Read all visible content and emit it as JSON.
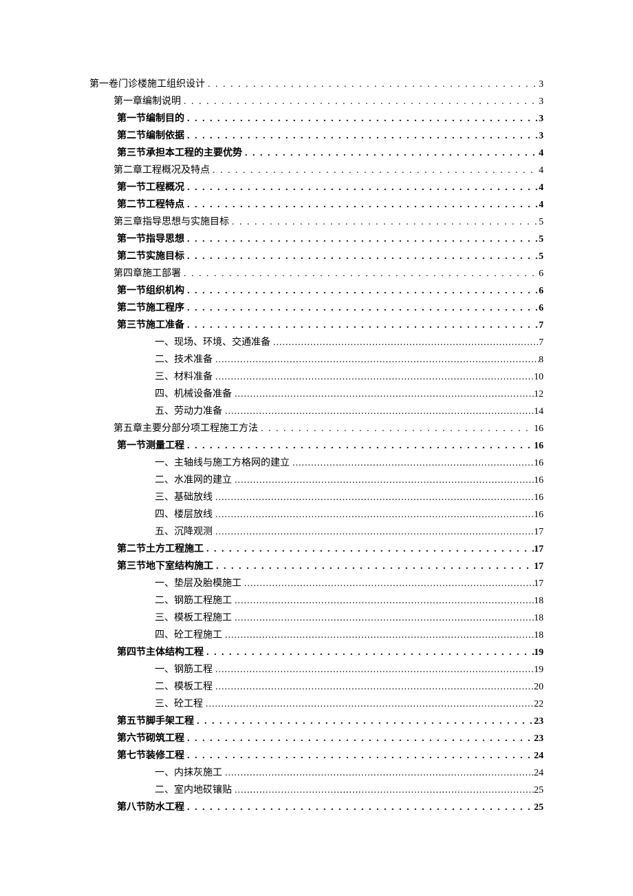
{
  "dotLeader": ". . . . . . . . . . . . . . . . . . . . . . . . . . . . . . . . . . . . . . . . . . . . . . . . . . . . . . . . . . . . . . . . . . . . . . . . . . . . . . . . . . . . . . . . . . . . . . . . . . . . . . . . . . . . . . . . . . . . . . . . . . . . . . . . . . . . . . . . . . . . . . . . . . . . . . . . . . . . . . . . . . . . . . . . . . . . . . . . . . . .",
  "halfDotLeader": "........................................................................................................................................................................................................................",
  "toc": [
    {
      "level": 0,
      "label": "第一卷门诊楼施工组织设计",
      "page": "3",
      "bold": false,
      "halfdot": false
    },
    {
      "level": 1,
      "label": "第一章编制说明",
      "page": "3",
      "bold": false,
      "halfdot": false
    },
    {
      "level": 2,
      "label": "第一节编制目的",
      "page": "3",
      "bold": true,
      "halfdot": false
    },
    {
      "level": 2,
      "label": "第二节编制依据",
      "page": "3",
      "bold": true,
      "halfdot": false
    },
    {
      "level": 2,
      "label": "第三节承担本工程的主要优势",
      "page": "4",
      "bold": true,
      "halfdot": false
    },
    {
      "level": 1,
      "label": "第二章工程概况及特点",
      "page": "4",
      "bold": false,
      "halfdot": false
    },
    {
      "level": 2,
      "label": "第一节工程概况",
      "page": "4",
      "bold": true,
      "halfdot": false
    },
    {
      "level": 2,
      "label": "第二节工程特点",
      "page": "4",
      "bold": true,
      "halfdot": false
    },
    {
      "level": 1,
      "label": "第三章指导思想与实施目标",
      "page": "5",
      "bold": false,
      "halfdot": false
    },
    {
      "level": 2,
      "label": "第一节指导思想",
      "page": "5",
      "bold": true,
      "halfdot": false
    },
    {
      "level": 2,
      "label": "第二节实施目标",
      "page": "5",
      "bold": true,
      "halfdot": false
    },
    {
      "level": 1,
      "label": "第四章施工部署",
      "page": "6",
      "bold": false,
      "halfdot": false
    },
    {
      "level": 2,
      "label": "第一节组织机构",
      "page": "6",
      "bold": true,
      "halfdot": false
    },
    {
      "level": 2,
      "label": "第二节施工程序",
      "page": "6",
      "bold": true,
      "halfdot": false
    },
    {
      "level": 2,
      "label": "第三节施工准备",
      "page": "7",
      "bold": true,
      "halfdot": false
    },
    {
      "level": 3,
      "label": "一、现场、环境、交通准备",
      "page": "7",
      "bold": false,
      "halfdot": true
    },
    {
      "level": 3,
      "label": "二、技术准备",
      "page": "8",
      "bold": false,
      "halfdot": true
    },
    {
      "level": 3,
      "label": "三、材料准备",
      "page": "10",
      "bold": false,
      "halfdot": true
    },
    {
      "level": 3,
      "label": "四、机械设备准备",
      "page": "12",
      "bold": false,
      "halfdot": true
    },
    {
      "level": 3,
      "label": "五、劳动力准备",
      "page": "14",
      "bold": false,
      "halfdot": true
    },
    {
      "level": 1,
      "label": "第五章主要分部分项工程施工方法",
      "page": "16",
      "bold": false,
      "halfdot": false
    },
    {
      "level": 2,
      "label": "第一节测量工程",
      "page": "16",
      "bold": true,
      "halfdot": false
    },
    {
      "level": 3,
      "label": "一、主轴线与施工方格网的建立",
      "page": "16",
      "bold": false,
      "halfdot": true
    },
    {
      "level": 3,
      "label": "二、水准网的建立",
      "page": "16",
      "bold": false,
      "halfdot": true
    },
    {
      "level": 3,
      "label": "三、基础放线",
      "page": "16",
      "bold": false,
      "halfdot": true
    },
    {
      "level": 3,
      "label": "四、楼层放线",
      "page": "16",
      "bold": false,
      "halfdot": true
    },
    {
      "level": 3,
      "label": "五、沉降观测",
      "page": "17",
      "bold": false,
      "halfdot": true
    },
    {
      "level": 2,
      "label": "第二节土方工程施工",
      "page": "17",
      "bold": true,
      "halfdot": false
    },
    {
      "level": 2,
      "label": "第三节地下室结构施工",
      "page": "17",
      "bold": true,
      "halfdot": false
    },
    {
      "level": 3,
      "label": "一、垫层及胎模施工",
      "page": "17",
      "bold": false,
      "halfdot": true
    },
    {
      "level": 3,
      "label": "二、钢筋工程施工",
      "page": "18",
      "bold": false,
      "halfdot": true
    },
    {
      "level": 3,
      "label": "三、模板工程施工",
      "page": "18",
      "bold": false,
      "halfdot": true
    },
    {
      "level": 3,
      "label": "四、砼工程施工",
      "page": "18",
      "bold": false,
      "halfdot": true
    },
    {
      "level": 2,
      "label": "第四节主体结构工程",
      "page": "19",
      "bold": true,
      "halfdot": false
    },
    {
      "level": 3,
      "label": "一、钢筋工程",
      "page": "19",
      "bold": false,
      "halfdot": true
    },
    {
      "level": 3,
      "label": "二、模板工程",
      "page": "20",
      "bold": false,
      "halfdot": true
    },
    {
      "level": 3,
      "label": "三、砼工程",
      "page": "22",
      "bold": false,
      "halfdot": true
    },
    {
      "level": 2,
      "label": "第五节脚手架工程",
      "page": "23",
      "bold": true,
      "halfdot": false
    },
    {
      "level": 2,
      "label": "第六节砌筑工程",
      "page": "23",
      "bold": true,
      "halfdot": false
    },
    {
      "level": 2,
      "label": "第七节装修工程",
      "page": "24",
      "bold": true,
      "halfdot": false
    },
    {
      "level": 3,
      "label": "一、内抹灰施工",
      "page": "24",
      "bold": false,
      "halfdot": true
    },
    {
      "level": 3,
      "label": "二、室内地砹镶贴",
      "page": "25",
      "bold": false,
      "halfdot": true
    },
    {
      "level": 2,
      "label": "第八节防水工程",
      "page": "25",
      "bold": true,
      "halfdot": false
    }
  ]
}
